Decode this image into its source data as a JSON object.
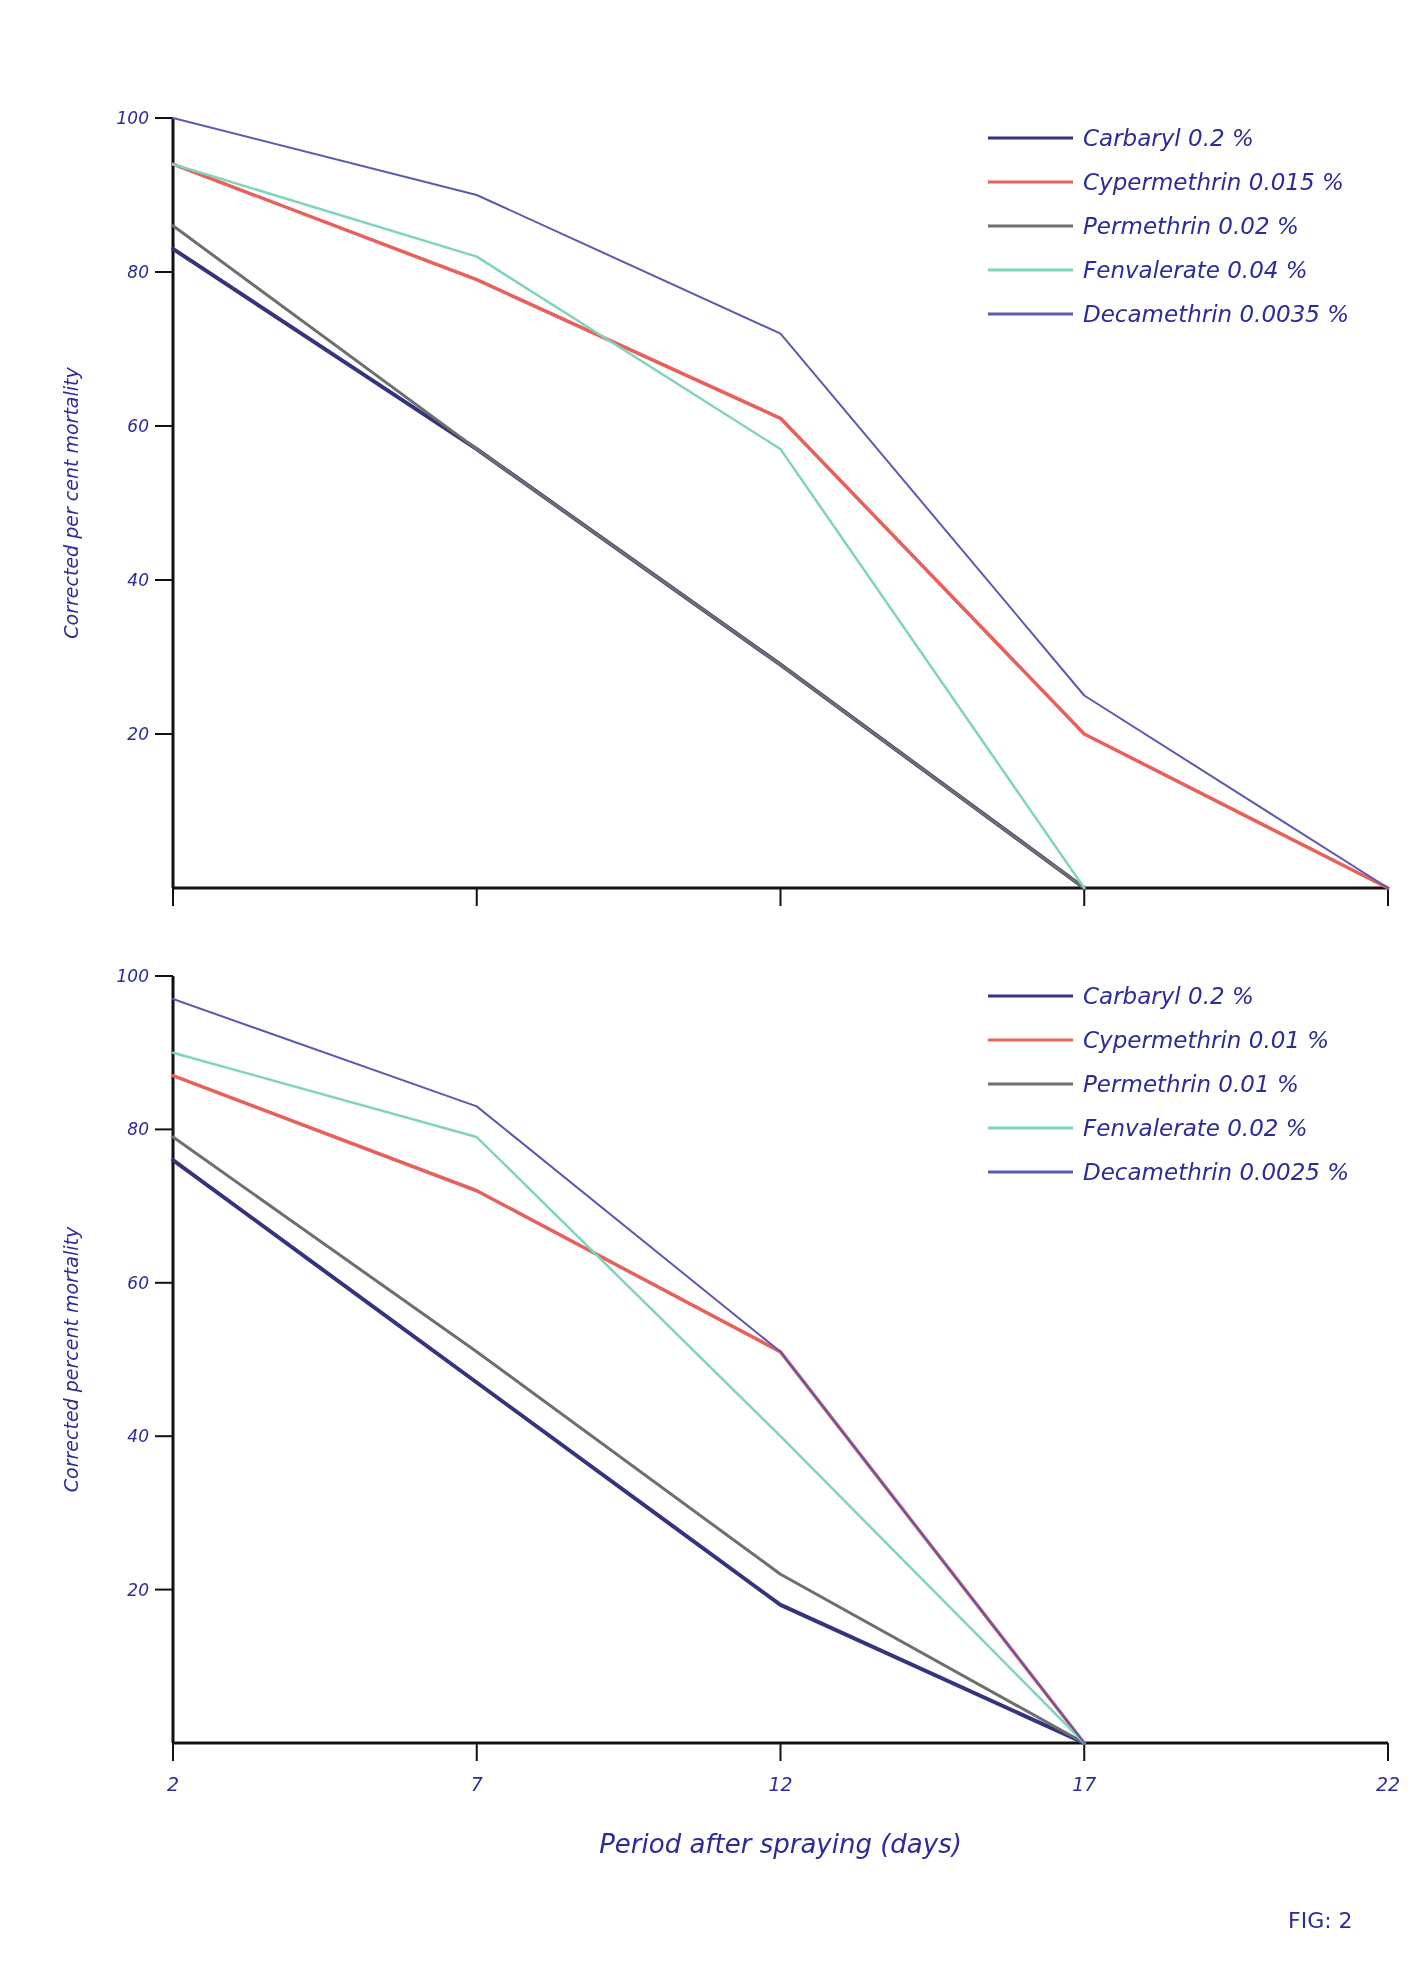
{
  "chart_data": [
    {
      "type": "line",
      "ylabel": "Corrected per cent mortality",
      "x": [
        2,
        7,
        12,
        17,
        22
      ],
      "xlim": [
        2,
        22
      ],
      "xticks": [
        2,
        7,
        12,
        17,
        22
      ],
      "ylim": [
        0,
        100
      ],
      "yticks": [
        20,
        40,
        60,
        80,
        100
      ],
      "tick_labels": "y",
      "grid": false,
      "legend": "top right",
      "marker": "none",
      "line_style": "solid",
      "series": [
        {
          "name": "Carbaryl 0.2 %",
          "color": "#33337f",
          "values": [
            83,
            57,
            29,
            0,
            null
          ]
        },
        {
          "name": "Cypermethrin 0.015 %",
          "color": "#e8605a",
          "values": [
            94,
            79,
            61,
            20,
            0
          ]
        },
        {
          "name": "Permethrin 0.02 %",
          "color": "#6e6e6e",
          "values": [
            86,
            57,
            29,
            0,
            null
          ]
        },
        {
          "name": "Fenvalerate 0.04 %",
          "color": "#7fd4bd",
          "values": [
            94,
            82,
            57,
            0,
            null
          ]
        },
        {
          "name": "Decamethrin 0.0035 %",
          "color": "#5a5ab4",
          "values": [
            100,
            90,
            72,
            25,
            0
          ]
        }
      ]
    },
    {
      "type": "line",
      "xlabel": "Period after spraying (days)",
      "ylabel": "Corrected percent mortality",
      "annotations": [
        "FIG: 2"
      ],
      "x": [
        2,
        7,
        12,
        17
      ],
      "xlim": [
        2,
        22
      ],
      "xticks": [
        2,
        7,
        12,
        17,
        22
      ],
      "ylim": [
        0,
        100
      ],
      "yticks": [
        20,
        40,
        60,
        80,
        100
      ],
      "grid": false,
      "legend": "top right",
      "marker": "none",
      "line_style": "solid",
      "series": [
        {
          "name": "Carbaryl 0.2 %",
          "color": "#33337f",
          "values": [
            76,
            47,
            18,
            0
          ]
        },
        {
          "name": "Cypermethrin 0.01 %",
          "color": "#e8605a",
          "values": [
            87,
            72,
            51,
            0
          ]
        },
        {
          "name": "Permethrin 0.01 %",
          "color": "#6e6e6e",
          "values": [
            79,
            51,
            22,
            0
          ]
        },
        {
          "name": "Fenvalerate 0.02 %",
          "color": "#7fd4bd",
          "values": [
            90,
            79,
            40,
            0
          ]
        },
        {
          "name": "Decamethrin 0.0025 %",
          "color": "#5a5ab4",
          "values": [
            97,
            83,
            51,
            0
          ]
        }
      ]
    }
  ]
}
